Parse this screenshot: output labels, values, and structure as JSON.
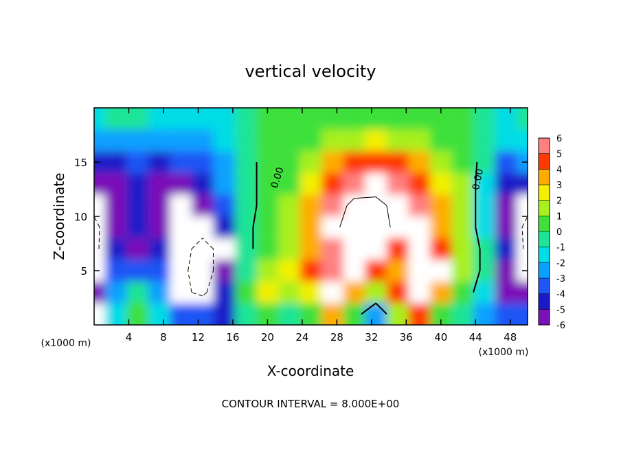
{
  "chart_data": {
    "type": "contourf",
    "title": "vertical velocity",
    "x_label": "X-coordinate",
    "y_label": "Z-coordinate",
    "x_unit": "(x1000 m)",
    "y_unit": "(x1000 m)",
    "note": "CONTOUR INTERVAL = 8.000E+00",
    "xlim": [
      0,
      50
    ],
    "ylim": [
      0,
      20
    ],
    "xticks": [
      4,
      8,
      12,
      16,
      20,
      24,
      28,
      32,
      36,
      40,
      44,
      48
    ],
    "yticks": [
      5,
      10,
      15
    ],
    "x": [
      0,
      2.5,
      5,
      7.5,
      10,
      12.5,
      15,
      17.5,
      20,
      22.5,
      25,
      27.5,
      30,
      32.5,
      35,
      37.5,
      40,
      42.5,
      45,
      47.5,
      50
    ],
    "y": [
      1,
      3,
      5,
      7,
      9,
      11,
      13,
      15,
      17,
      19
    ],
    "z": [
      [
        -7,
        -1,
        1,
        -1,
        -3,
        -3,
        -4,
        0,
        1,
        0,
        1,
        4,
        1,
        -2,
        2,
        5,
        1,
        0,
        -2,
        -3,
        -3
      ],
      [
        -5,
        -2,
        0,
        -2,
        -7,
        -9,
        -4,
        1,
        3,
        2,
        3,
        7,
        4,
        2,
        5,
        8,
        4,
        1,
        -1,
        -5,
        -6
      ],
      [
        -8,
        -3,
        -3,
        -3,
        -7,
        -10,
        -6,
        0,
        2,
        3,
        4.5,
        6,
        7,
        5,
        4,
        9,
        8,
        2,
        -0.5,
        -6,
        -8
      ],
      [
        -9,
        -4.5,
        -5,
        -4,
        -7,
        -9,
        -7,
        -0.5,
        1,
        2,
        4,
        6,
        8,
        8,
        5,
        8,
        5,
        2,
        -0.5,
        -4,
        -9
      ],
      [
        -9,
        -5,
        -4,
        -5,
        -8,
        -7,
        -4,
        -0.5,
        1,
        2,
        4,
        7,
        10,
        10,
        7,
        6.5,
        4,
        1.5,
        -1,
        -5,
        -9
      ],
      [
        -7,
        -5,
        -4,
        -5.5,
        -8,
        -5,
        -3,
        -0.5,
        0.5,
        1.5,
        3.5,
        6,
        9,
        9,
        7,
        5.5,
        3.5,
        1.5,
        -1,
        -5.5,
        -7
      ],
      [
        -5,
        -5,
        -4.5,
        -5,
        -5,
        -4,
        -2.5,
        -0.5,
        0.5,
        1,
        3,
        5,
        6,
        6.5,
        6,
        5,
        3,
        1.5,
        -1,
        -4,
        -4
      ],
      [
        -4,
        -4.5,
        -3,
        -4,
        -3.5,
        -3,
        -2,
        -0.5,
        0.5,
        1,
        2,
        3.5,
        4.5,
        5,
        4.5,
        3.5,
        2,
        1,
        -0.5,
        -3,
        -2
      ],
      [
        -2,
        -2.5,
        -2,
        -2.5,
        -2,
        -2,
        -1.5,
        0,
        0.5,
        0.5,
        1,
        1.5,
        2,
        2.5,
        2,
        1.5,
        1,
        0.5,
        0,
        -1.5,
        -1
      ],
      [
        -1,
        -0.5,
        -0.5,
        -1,
        -1,
        -1.5,
        -1,
        0,
        0.5,
        0.5,
        0.5,
        0.5,
        1,
        1,
        0.5,
        0.5,
        0.5,
        0.5,
        0,
        -1,
        -0.5
      ]
    ],
    "colorbar": {
      "ticks": [
        -6,
        -5,
        -4,
        -3,
        -2,
        -1,
        0,
        1,
        2,
        3,
        4,
        5,
        6
      ],
      "colors": [
        "#7a10b8",
        "#1a1ac8",
        "#1f55f5",
        "#0aa0ff",
        "#00dce6",
        "#1ee496",
        "#3ee03a",
        "#a8f01e",
        "#f2f000",
        "#ffac00",
        "#ff3a00",
        "#ff8080"
      ],
      "out_of_range_color": "#ffffff"
    },
    "contours": [
      {
        "level": -8
      },
      {
        "level": 0,
        "label": "0.00"
      },
      {
        "level": 8
      }
    ]
  }
}
